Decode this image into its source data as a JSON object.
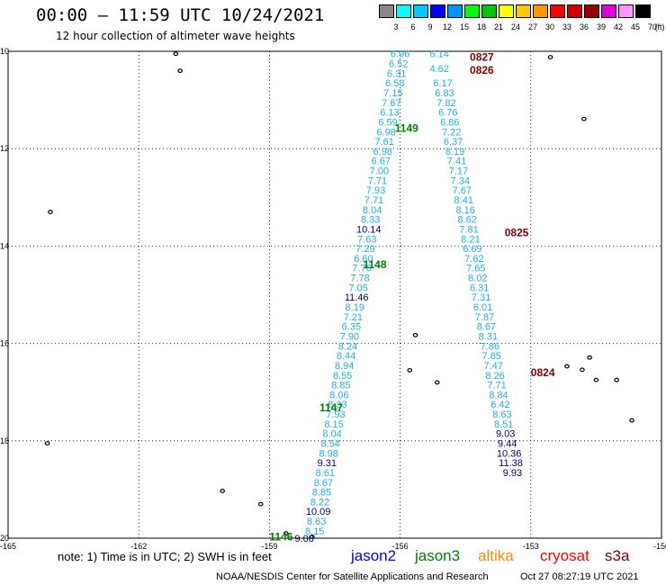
{
  "title": "00:00 — 11:59 UTC 10/24/2021",
  "subtitle": "12 hour collection of altimeter wave heights",
  "legend": {
    "unit": "(ft)",
    "colors": [
      "#888888",
      "#00ffff",
      "#00c8ff",
      "#0000ff",
      "#0096ff",
      "#00ff00",
      "#00c800",
      "#ffff00",
      "#ffc800",
      "#ff9600",
      "#ff0000",
      "#c80000",
      "#960000",
      "#e000e0",
      "#ff96ff",
      "#000000"
    ],
    "labels": [
      "3",
      "6",
      "9",
      "12",
      "15",
      "18",
      "21",
      "24",
      "27",
      "30",
      "33",
      "36",
      "39",
      "42",
      "45",
      "70"
    ]
  },
  "axes": {
    "x_ticks": [
      "-165",
      "-162",
      "-159",
      "-156",
      "-153",
      "-150"
    ],
    "y_ticks": [
      "-10",
      "-12",
      "-14",
      "-16",
      "-18",
      "-20"
    ]
  },
  "track_colors": {
    "c": "#1faee8",
    "d": "#00007a",
    "n": "#00c8dc"
  },
  "tracks": [
    {
      "id": "1149",
      "label": "1149",
      "label_color": "#008000",
      "label_pos": [
        -156.12,
        -11.58
      ],
      "points": [
        {
          "lon": -156.0,
          "lat": -10.05,
          "v": "6.96",
          "c": "c"
        },
        {
          "lon": -156.04,
          "lat": -10.25,
          "v": "6.52",
          "c": "c"
        },
        {
          "lon": -156.08,
          "lat": -10.45,
          "v": "6.31",
          "c": "c"
        },
        {
          "lon": -156.12,
          "lat": -10.65,
          "v": "6.58",
          "c": "c"
        },
        {
          "lon": -156.16,
          "lat": -10.85,
          "v": "7.15",
          "c": "c"
        },
        {
          "lon": -156.2,
          "lat": -11.05,
          "v": "7.67",
          "c": "c"
        },
        {
          "lon": -156.24,
          "lat": -11.25,
          "v": "6.13",
          "c": "c"
        },
        {
          "lon": -156.28,
          "lat": -11.45,
          "v": "6.59",
          "c": "c"
        },
        {
          "lon": -156.32,
          "lat": -11.65,
          "v": "6.98",
          "c": "c"
        },
        {
          "lon": -156.36,
          "lat": -11.85,
          "v": "7.61",
          "c": "c"
        },
        {
          "lon": -156.4,
          "lat": -12.05,
          "v": "6.98",
          "c": "c"
        },
        {
          "lon": -156.44,
          "lat": -12.25,
          "v": "6.67",
          "c": "c"
        },
        {
          "lon": -156.48,
          "lat": -12.45,
          "v": "7.00",
          "c": "c"
        },
        {
          "lon": -156.52,
          "lat": -12.65,
          "v": "7.71",
          "c": "c"
        },
        {
          "lon": -156.56,
          "lat": -12.85,
          "v": "7.93",
          "c": "c"
        },
        {
          "lon": -156.6,
          "lat": -13.05,
          "v": "7.71",
          "c": "c"
        },
        {
          "lon": -156.64,
          "lat": -13.25,
          "v": "8.04",
          "c": "c"
        },
        {
          "lon": -156.68,
          "lat": -13.45,
          "v": "8.33",
          "c": "c"
        },
        {
          "lon": -156.72,
          "lat": -13.65,
          "v": "10.14",
          "c": "d"
        },
        {
          "lon": -156.76,
          "lat": -13.85,
          "v": "7.63",
          "c": "c"
        },
        {
          "lon": -156.8,
          "lat": -14.05,
          "v": "7.29",
          "c": "c"
        }
      ]
    },
    {
      "id": "1148",
      "label": "1148",
      "label_color": "#008000",
      "label_pos": [
        -156.85,
        -14.38
      ],
      "points": [
        {
          "lon": -156.84,
          "lat": -14.25,
          "v": "6.60",
          "c": "c"
        },
        {
          "lon": -156.88,
          "lat": -14.45,
          "v": "7.76",
          "c": "c"
        },
        {
          "lon": -156.92,
          "lat": -14.65,
          "v": "7.78",
          "c": "c"
        },
        {
          "lon": -156.96,
          "lat": -14.85,
          "v": "7.05",
          "c": "c"
        },
        {
          "lon": -157.0,
          "lat": -15.05,
          "v": "11.46",
          "c": "d"
        },
        {
          "lon": -157.04,
          "lat": -15.25,
          "v": "8.19",
          "c": "c"
        },
        {
          "lon": -157.08,
          "lat": -15.45,
          "v": "7.21",
          "c": "c"
        },
        {
          "lon": -157.12,
          "lat": -15.65,
          "v": "6.35",
          "c": "c"
        },
        {
          "lon": -157.16,
          "lat": -15.85,
          "v": "7.90",
          "c": "c"
        },
        {
          "lon": -157.2,
          "lat": -16.05,
          "v": "8.24",
          "c": "c"
        },
        {
          "lon": -157.24,
          "lat": -16.25,
          "v": "8.44",
          "c": "c"
        },
        {
          "lon": -157.28,
          "lat": -16.45,
          "v": "8.94",
          "c": "c"
        },
        {
          "lon": -157.32,
          "lat": -16.65,
          "v": "8.55",
          "c": "c"
        },
        {
          "lon": -157.36,
          "lat": -16.85,
          "v": "8.85",
          "c": "c"
        },
        {
          "lon": -157.4,
          "lat": -17.05,
          "v": "8.06",
          "c": "c"
        },
        {
          "lon": -157.44,
          "lat": -17.25,
          "v": "8.33",
          "c": "c"
        },
        {
          "lon": -157.48,
          "lat": -17.45,
          "v": "7.93",
          "c": "c"
        }
      ]
    },
    {
      "id": "1147",
      "label": "1147",
      "label_color": "#008000",
      "label_pos": [
        -157.85,
        -17.32
      ],
      "points": [
        {
          "lon": -157.52,
          "lat": -17.65,
          "v": "8.15",
          "c": "c"
        },
        {
          "lon": -157.56,
          "lat": -17.85,
          "v": "8.04",
          "c": "c"
        },
        {
          "lon": -157.6,
          "lat": -18.05,
          "v": "8.54",
          "c": "c"
        },
        {
          "lon": -157.64,
          "lat": -18.25,
          "v": "8.98",
          "c": "c"
        },
        {
          "lon": -157.68,
          "lat": -18.45,
          "v": "9.31",
          "c": "d"
        },
        {
          "lon": -157.72,
          "lat": -18.65,
          "v": "8.61",
          "c": "c"
        },
        {
          "lon": -157.76,
          "lat": -18.85,
          "v": "8.67",
          "c": "c"
        },
        {
          "lon": -157.8,
          "lat": -19.05,
          "v": "8.85",
          "c": "c"
        },
        {
          "lon": -157.84,
          "lat": -19.25,
          "v": "8.22",
          "c": "c"
        },
        {
          "lon": -157.88,
          "lat": -19.45,
          "v": "10.09",
          "c": "d"
        },
        {
          "lon": -157.92,
          "lat": -19.65,
          "v": "8.63",
          "c": "c"
        },
        {
          "lon": -157.96,
          "lat": -19.85,
          "v": "8.15",
          "c": "c"
        },
        {
          "lon": -158.2,
          "lat": -20.0,
          "v": "9.08",
          "c": "d"
        }
      ]
    },
    {
      "id": "1146",
      "label": "1146",
      "label_color": "#008000",
      "label_pos": [
        -159.0,
        -19.97
      ],
      "points": []
    },
    {
      "id": "0827",
      "label": "0827",
      "label_color": "#800000",
      "label_pos": [
        -154.4,
        -10.12
      ],
      "points": [
        {
          "lon": -155.1,
          "lat": -10.05,
          "v": "6.14",
          "c": "c"
        },
        {
          "lon": -155.1,
          "lat": -10.35,
          "v": "4.62",
          "c": "n"
        }
      ]
    },
    {
      "id": "0826",
      "label": "0826",
      "label_color": "#800000",
      "label_pos": [
        -154.4,
        -10.39
      ],
      "points": [
        {
          "lon": -155.02,
          "lat": -10.65,
          "v": "6.17",
          "c": "c"
        },
        {
          "lon": -154.98,
          "lat": -10.85,
          "v": "6.83",
          "c": "c"
        },
        {
          "lon": -154.94,
          "lat": -11.05,
          "v": "7.82",
          "c": "c"
        },
        {
          "lon": -154.9,
          "lat": -11.25,
          "v": "6.76",
          "c": "c"
        },
        {
          "lon": -154.86,
          "lat": -11.45,
          "v": "6.86",
          "c": "c"
        },
        {
          "lon": -154.82,
          "lat": -11.65,
          "v": "7.22",
          "c": "c"
        },
        {
          "lon": -154.78,
          "lat": -11.85,
          "v": "6.37",
          "c": "c"
        },
        {
          "lon": -154.74,
          "lat": -12.05,
          "v": "8.19",
          "c": "c"
        },
        {
          "lon": -154.7,
          "lat": -12.25,
          "v": "7.41",
          "c": "c"
        },
        {
          "lon": -154.66,
          "lat": -12.45,
          "v": "7.17",
          "c": "c"
        },
        {
          "lon": -154.62,
          "lat": -12.65,
          "v": "7.34",
          "c": "c"
        },
        {
          "lon": -154.58,
          "lat": -12.85,
          "v": "7.67",
          "c": "c"
        },
        {
          "lon": -154.54,
          "lat": -13.05,
          "v": "8.41",
          "c": "c"
        },
        {
          "lon": -154.5,
          "lat": -13.25,
          "v": "8.16",
          "c": "c"
        },
        {
          "lon": -154.46,
          "lat": -13.45,
          "v": "8.62",
          "c": "c"
        }
      ]
    },
    {
      "id": "0825",
      "label": "0825",
      "label_color": "#800000",
      "label_pos": [
        -153.6,
        -13.72
      ],
      "points": [
        {
          "lon": -154.42,
          "lat": -13.65,
          "v": "7.81",
          "c": "c"
        },
        {
          "lon": -154.38,
          "lat": -13.85,
          "v": "8.21",
          "c": "c"
        },
        {
          "lon": -154.34,
          "lat": -14.05,
          "v": "6.69",
          "c": "c"
        },
        {
          "lon": -154.3,
          "lat": -14.25,
          "v": "7.62",
          "c": "c"
        },
        {
          "lon": -154.26,
          "lat": -14.45,
          "v": "7.65",
          "c": "c"
        },
        {
          "lon": -154.22,
          "lat": -14.65,
          "v": "8.02",
          "c": "c"
        },
        {
          "lon": -154.18,
          "lat": -14.85,
          "v": "6.31",
          "c": "c"
        },
        {
          "lon": -154.14,
          "lat": -15.05,
          "v": "7.31",
          "c": "c"
        },
        {
          "lon": -154.1,
          "lat": -15.25,
          "v": "6.01",
          "c": "c"
        },
        {
          "lon": -154.06,
          "lat": -15.45,
          "v": "7.87",
          "c": "c"
        },
        {
          "lon": -154.02,
          "lat": -15.65,
          "v": "8.67",
          "c": "c"
        },
        {
          "lon": -153.98,
          "lat": -15.85,
          "v": "8.31",
          "c": "c"
        },
        {
          "lon": -153.94,
          "lat": -16.05,
          "v": "7.86",
          "c": "c"
        },
        {
          "lon": -153.9,
          "lat": -16.25,
          "v": "7.85",
          "c": "c"
        },
        {
          "lon": -153.86,
          "lat": -16.45,
          "v": "7.47",
          "c": "c"
        }
      ]
    },
    {
      "id": "0824",
      "label": "0824",
      "label_color": "#800000",
      "label_pos": [
        -153.0,
        -16.6
      ],
      "points": [
        {
          "lon": -153.82,
          "lat": -16.65,
          "v": "8.26",
          "c": "c"
        },
        {
          "lon": -153.78,
          "lat": -16.85,
          "v": "7.71",
          "c": "c"
        },
        {
          "lon": -153.74,
          "lat": -17.05,
          "v": "8.84",
          "c": "c"
        },
        {
          "lon": -153.7,
          "lat": -17.25,
          "v": "6.42",
          "c": "c"
        },
        {
          "lon": -153.66,
          "lat": -17.45,
          "v": "8.63",
          "c": "c"
        },
        {
          "lon": -153.62,
          "lat": -17.65,
          "v": "8.51",
          "c": "c"
        },
        {
          "lon": -153.58,
          "lat": -17.85,
          "v": "9.03",
          "c": "d"
        },
        {
          "lon": -153.54,
          "lat": -18.05,
          "v": "9.44",
          "c": "d"
        },
        {
          "lon": -153.5,
          "lat": -18.25,
          "v": "10.36",
          "c": "d"
        },
        {
          "lon": -153.46,
          "lat": -18.45,
          "v": "11.38",
          "c": "d"
        },
        {
          "lon": -153.42,
          "lat": -18.65,
          "v": "9.93",
          "c": "d"
        }
      ]
    }
  ],
  "islands": [
    {
      "lon": -161.15,
      "lat": -10.05
    },
    {
      "lon": -161.05,
      "lat": -10.4
    },
    {
      "lon": -164.03,
      "lat": -13.3
    },
    {
      "lon": -152.55,
      "lat": -10.12
    },
    {
      "lon": -151.78,
      "lat": -11.39
    },
    {
      "lon": -155.65,
      "lat": -15.83
    },
    {
      "lon": -155.78,
      "lat": -16.55
    },
    {
      "lon": -155.15,
      "lat": -16.8
    },
    {
      "lon": -151.65,
      "lat": -16.29
    },
    {
      "lon": -152.17,
      "lat": -16.47
    },
    {
      "lon": -151.82,
      "lat": -16.54
    },
    {
      "lon": -151.5,
      "lat": -16.75
    },
    {
      "lon": -151.03,
      "lat": -16.75
    },
    {
      "lon": -150.68,
      "lat": -17.58
    },
    {
      "lon": -164.1,
      "lat": -18.05
    },
    {
      "lon": -160.08,
      "lat": -19.03
    },
    {
      "lon": -159.2,
      "lat": -19.3
    },
    {
      "lon": -158.62,
      "lat": -19.9
    },
    {
      "lon": -158.02,
      "lat": -19.97
    }
  ],
  "note": "note: 1) Time is in UTC; 2) SWH is in feet",
  "satellites": [
    {
      "name": "jason2",
      "color": "#0000ff"
    },
    {
      "name": "jason3",
      "color": "#008000"
    },
    {
      "name": "altika",
      "color": "#ff8c00"
    },
    {
      "name": "cryosat",
      "color": "#ff0000"
    },
    {
      "name": "s3a",
      "color": "#800000"
    }
  ],
  "credit": "NOAA/NESDIS Center for Satellite Applications and Research",
  "timestamp": "Oct 27 08:27:19 UTC 2021"
}
